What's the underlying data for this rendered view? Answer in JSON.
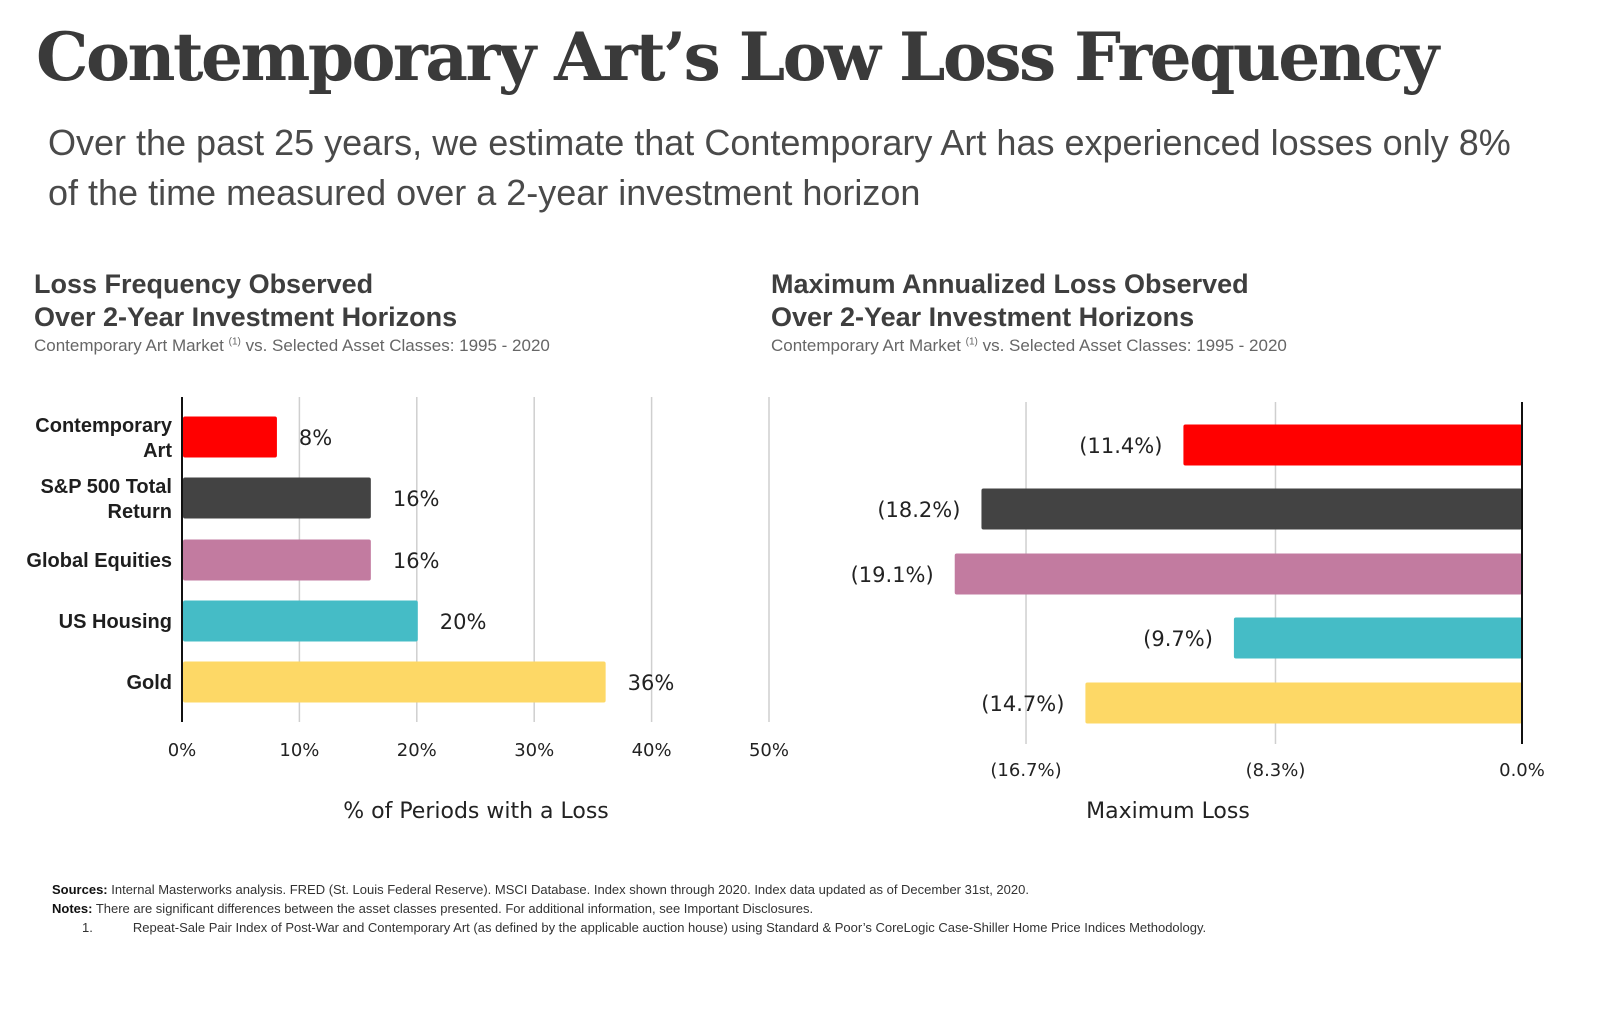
{
  "title": "Contemporary Art’s Low Loss Frequency",
  "subtitle": "Over the past 25 years, we estimate that Contemporary Art has experienced losses only 8% of the time measured over a 2-year investment horizon",
  "left_header": {
    "line1": "Loss Frequency Observed",
    "line2": "Over 2-Year Investment Horizons",
    "note_a": "Contemporary Art Market",
    "note_sup": "(1)",
    "note_b": " vs. Selected Asset Classes: 1995 - 2020"
  },
  "right_header": {
    "line1": "Maximum Annualized Loss Observed",
    "line2": "Over 2-Year Investment Horizons",
    "note_a": "Contemporary Art Market",
    "note_sup": "(1)",
    "note_b": " vs. Selected Asset Classes: 1995 - 2020"
  },
  "chart_data": [
    {
      "type": "bar",
      "orientation": "horizontal",
      "title": "Loss Frequency Observed Over 2-Year Investment Horizons",
      "categories": [
        [
          "Contemporary",
          "Art"
        ],
        [
          "S&P 500 Total",
          "Return"
        ],
        [
          "Global Equities"
        ],
        [
          "US Housing"
        ],
        [
          "Gold"
        ]
      ],
      "values": [
        8,
        16,
        16,
        20,
        36
      ],
      "labels": [
        "8%",
        "16%",
        "16%",
        "20%",
        "36%"
      ],
      "colors": [
        "#ff0000",
        "#434343",
        "#c27ba0",
        "#45bcc6",
        "#fdd866"
      ],
      "xlim": [
        0,
        50
      ],
      "ticks": [
        0,
        10,
        20,
        30,
        40,
        50
      ],
      "tick_labels": [
        "0%",
        "10%",
        "20%",
        "30%",
        "40%",
        "50%"
      ],
      "xlabel": "% of Periods with a Loss",
      "grid": true
    },
    {
      "type": "bar",
      "orientation": "horizontal",
      "title": "Maximum Annualized Loss Observed Over 2-Year Investment Horizons",
      "categories": [
        "Contemporary Art",
        "S&P 500 Total Return",
        "Global Equities",
        "US Housing",
        "Gold"
      ],
      "values": [
        -11.4,
        -18.2,
        -19.1,
        -9.7,
        -14.7
      ],
      "labels": [
        "(11.4%)",
        "(18.2%)",
        "(19.1%)",
        "(9.7%)",
        "(14.7%)"
      ],
      "colors": [
        "#ff0000",
        "#434343",
        "#c27ba0",
        "#45bcc6",
        "#fdd866"
      ],
      "xlim": [
        -20,
        0
      ],
      "ticks": [
        -16.7,
        -8.3,
        0
      ],
      "tick_labels": [
        "(16.7%)",
        "(8.3%)",
        "0.0%"
      ],
      "xlabel": "Maximum Loss",
      "grid": true
    }
  ],
  "footer": {
    "sources_label": "Sources:",
    "sources_text": " Internal Masterworks analysis. FRED (St. Louis Federal Reserve). MSCI Database. Index shown through 2020. Index data updated as of December 31st, 2020.",
    "notes_label": "Notes:",
    "notes_text": " There are significant differences between the asset classes presented. For additional information, see Important Disclosures.",
    "note1_num": "1.",
    "note1_text": "Repeat-Sale Pair Index of Post-War and Contemporary Art (as defined by the applicable auction house) using Standard & Poor’s CoreLogic Case-Shiller Home Price Indices Methodology."
  }
}
